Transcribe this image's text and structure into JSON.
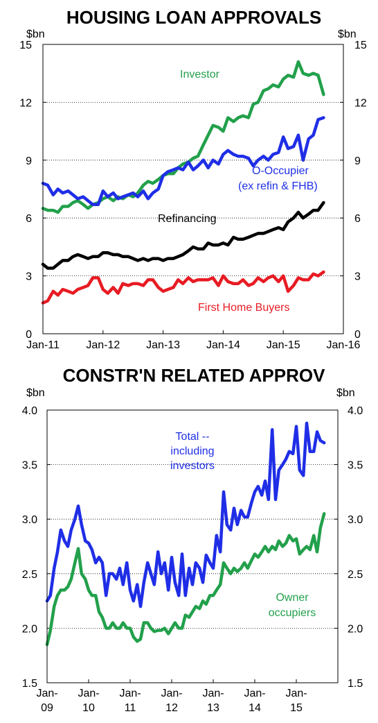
{
  "chart_data": [
    {
      "type": "line",
      "title": "HOUSING LOAN APPROVALS",
      "ylabel": "$bn",
      "ylim": [
        0,
        15
      ],
      "xlim": [
        2011.0,
        2016.0
      ],
      "yticks": [
        0,
        3,
        6,
        9,
        12,
        15
      ],
      "ytick_labels": [
        "0",
        "3",
        "6",
        "9",
        "12",
        "15"
      ],
      "xticks": [
        2011,
        2012,
        2013,
        2014,
        2015,
        2016
      ],
      "xtick_labels": [
        "Jan-11",
        "Jan-12",
        "Jan-13",
        "Jan-14",
        "Jan-15",
        "Jan-16"
      ],
      "grid": "horizontal dotted",
      "series": [
        {
          "name": "Investor",
          "color": "#22a04b",
          "x": [
            2011.0,
            2011.08,
            2011.17,
            2011.25,
            2011.33,
            2011.42,
            2011.5,
            2011.58,
            2011.67,
            2011.75,
            2011.83,
            2011.92,
            2012.0,
            2012.08,
            2012.17,
            2012.25,
            2012.33,
            2012.42,
            2012.5,
            2012.58,
            2012.67,
            2012.75,
            2012.83,
            2012.92,
            2013.0,
            2013.08,
            2013.17,
            2013.25,
            2013.33,
            2013.42,
            2013.5,
            2013.58,
            2013.67,
            2013.75,
            2013.83,
            2013.92,
            2014.0,
            2014.08,
            2014.17,
            2014.25,
            2014.33,
            2014.42,
            2014.5,
            2014.58,
            2014.67,
            2014.75,
            2014.83,
            2014.92,
            2015.0,
            2015.08,
            2015.17,
            2015.25,
            2015.33,
            2015.42,
            2015.5,
            2015.58,
            2015.67
          ],
          "values": [
            6.5,
            6.4,
            6.4,
            6.3,
            6.6,
            6.6,
            6.8,
            6.9,
            6.7,
            6.5,
            6.7,
            6.8,
            7.0,
            7.1,
            6.9,
            7.1,
            7.0,
            7.2,
            7.1,
            7.3,
            7.7,
            7.9,
            7.8,
            8.0,
            8.2,
            8.3,
            8.3,
            8.6,
            8.8,
            8.9,
            9.1,
            9.2,
            9.8,
            10.3,
            10.8,
            10.7,
            10.5,
            11.2,
            11.0,
            11.2,
            11.3,
            11.2,
            11.9,
            12.0,
            12.6,
            12.7,
            12.9,
            12.8,
            13.2,
            13.4,
            13.3,
            14.1,
            13.5,
            13.4,
            13.5,
            13.4,
            12.4
          ]
        },
        {
          "name": "O-Occupier (ex refin & FHB)",
          "color": "#1f2ee6",
          "x": [
            2011.0,
            2011.08,
            2011.17,
            2011.25,
            2011.33,
            2011.42,
            2011.5,
            2011.58,
            2011.67,
            2011.75,
            2011.83,
            2011.92,
            2012.0,
            2012.08,
            2012.17,
            2012.25,
            2012.33,
            2012.42,
            2012.5,
            2012.58,
            2012.67,
            2012.75,
            2012.83,
            2012.92,
            2013.0,
            2013.08,
            2013.17,
            2013.25,
            2013.33,
            2013.42,
            2013.5,
            2013.58,
            2013.67,
            2013.75,
            2013.83,
            2013.92,
            2014.0,
            2014.08,
            2014.17,
            2014.25,
            2014.33,
            2014.42,
            2014.5,
            2014.58,
            2014.67,
            2014.75,
            2014.83,
            2014.92,
            2015.0,
            2015.08,
            2015.17,
            2015.25,
            2015.33,
            2015.42,
            2015.5,
            2015.58,
            2015.67
          ],
          "values": [
            7.8,
            7.7,
            7.2,
            7.5,
            7.3,
            7.4,
            7.2,
            7.0,
            7.1,
            6.9,
            6.7,
            6.7,
            7.4,
            7.1,
            7.3,
            7.0,
            7.1,
            7.2,
            7.3,
            7.1,
            7.4,
            7.0,
            7.3,
            7.5,
            8.2,
            8.4,
            8.5,
            8.6,
            8.5,
            8.9,
            8.5,
            8.7,
            9.0,
            8.6,
            9.0,
            8.8,
            9.3,
            9.5,
            9.3,
            9.2,
            9.2,
            9.1,
            8.7,
            9.0,
            9.2,
            9.0,
            9.3,
            9.4,
            10.2,
            9.6,
            9.7,
            10.3,
            9.0,
            10.1,
            10.3,
            11.1,
            11.2
          ]
        },
        {
          "name": "Refinancing",
          "color": "#000000",
          "x": [
            2011.0,
            2011.08,
            2011.17,
            2011.25,
            2011.33,
            2011.42,
            2011.5,
            2011.58,
            2011.67,
            2011.75,
            2011.83,
            2011.92,
            2012.0,
            2012.08,
            2012.17,
            2012.25,
            2012.33,
            2012.42,
            2012.5,
            2012.58,
            2012.67,
            2012.75,
            2012.83,
            2012.92,
            2013.0,
            2013.08,
            2013.17,
            2013.25,
            2013.33,
            2013.42,
            2013.5,
            2013.58,
            2013.67,
            2013.75,
            2013.83,
            2013.92,
            2014.0,
            2014.08,
            2014.17,
            2014.25,
            2014.33,
            2014.42,
            2014.5,
            2014.58,
            2014.67,
            2014.75,
            2014.83,
            2014.92,
            2015.0,
            2015.08,
            2015.17,
            2015.25,
            2015.33,
            2015.42,
            2015.5,
            2015.58,
            2015.67
          ],
          "values": [
            3.6,
            3.4,
            3.4,
            3.6,
            3.8,
            3.8,
            4.0,
            4.1,
            4.0,
            3.9,
            4.0,
            4.0,
            4.2,
            4.2,
            4.1,
            4.1,
            4.0,
            4.0,
            3.9,
            3.8,
            3.9,
            3.8,
            3.9,
            3.9,
            3.8,
            3.9,
            3.9,
            4.0,
            4.1,
            4.3,
            4.5,
            4.4,
            4.4,
            4.7,
            4.6,
            4.6,
            4.7,
            4.6,
            5.0,
            4.9,
            4.9,
            5.0,
            5.1,
            5.2,
            5.2,
            5.3,
            5.4,
            5.5,
            5.4,
            5.8,
            6.0,
            6.3,
            6.0,
            6.2,
            6.4,
            6.4,
            6.8
          ]
        },
        {
          "name": "First Home Buyers",
          "color": "#e81b23",
          "x": [
            2011.0,
            2011.08,
            2011.17,
            2011.25,
            2011.33,
            2011.42,
            2011.5,
            2011.58,
            2011.67,
            2011.75,
            2011.83,
            2011.92,
            2012.0,
            2012.08,
            2012.17,
            2012.25,
            2012.33,
            2012.42,
            2012.5,
            2012.58,
            2012.67,
            2012.75,
            2012.83,
            2012.92,
            2013.0,
            2013.08,
            2013.17,
            2013.25,
            2013.33,
            2013.42,
            2013.5,
            2013.58,
            2013.67,
            2013.75,
            2013.83,
            2013.92,
            2014.0,
            2014.08,
            2014.17,
            2014.25,
            2014.33,
            2014.42,
            2014.5,
            2014.58,
            2014.67,
            2014.75,
            2014.83,
            2014.92,
            2015.0,
            2015.08,
            2015.17,
            2015.25,
            2015.33,
            2015.42,
            2015.5,
            2015.58,
            2015.67
          ],
          "values": [
            1.6,
            1.7,
            2.2,
            2.0,
            2.3,
            2.2,
            2.1,
            2.3,
            2.4,
            2.5,
            2.9,
            2.9,
            2.3,
            2.1,
            2.4,
            2.1,
            2.6,
            2.5,
            2.6,
            2.6,
            2.5,
            2.8,
            2.8,
            2.4,
            2.2,
            2.3,
            2.4,
            2.8,
            2.6,
            2.9,
            2.7,
            2.8,
            2.8,
            2.8,
            2.9,
            2.5,
            3.0,
            2.7,
            2.6,
            2.6,
            2.8,
            2.5,
            2.6,
            2.9,
            2.7,
            2.9,
            3.0,
            2.7,
            3.0,
            2.2,
            2.5,
            2.9,
            2.8,
            2.8,
            3.1,
            3.0,
            3.2
          ]
        }
      ]
    },
    {
      "type": "line",
      "title": "CONSTR'N RELATED APPROV",
      "ylabel": "$bn",
      "ylim": [
        1.5,
        4.0
      ],
      "xlim": [
        2009.0,
        2016.0
      ],
      "yticks": [
        1.5,
        2.0,
        2.5,
        3.0,
        3.5,
        4.0
      ],
      "ytick_labels": [
        "1.5",
        "2.0",
        "2.5",
        "3.0",
        "3.5",
        "4.0"
      ],
      "xticks": [
        2009,
        2010,
        2011,
        2012,
        2013,
        2014,
        2015
      ],
      "xtick_labels": [
        [
          "Jan-",
          "09"
        ],
        [
          "Jan-",
          "10"
        ],
        [
          "Jan-",
          "11"
        ],
        [
          "Jan-",
          "12"
        ],
        [
          "Jan-",
          "13"
        ],
        [
          "Jan-",
          "14"
        ],
        [
          "Jan-",
          "15"
        ]
      ],
      "grid": "horizontal dotted",
      "series": [
        {
          "name": "Total -- including investors",
          "color": "#1f2ee6",
          "x": [
            2009.0,
            2009.08,
            2009.17,
            2009.25,
            2009.33,
            2009.42,
            2009.5,
            2009.58,
            2009.67,
            2009.75,
            2009.83,
            2009.92,
            2010.0,
            2010.08,
            2010.17,
            2010.25,
            2010.33,
            2010.42,
            2010.5,
            2010.58,
            2010.67,
            2010.75,
            2010.83,
            2010.92,
            2011.0,
            2011.08,
            2011.17,
            2011.25,
            2011.33,
            2011.42,
            2011.5,
            2011.58,
            2011.67,
            2011.75,
            2011.83,
            2011.92,
            2012.0,
            2012.08,
            2012.17,
            2012.25,
            2012.33,
            2012.42,
            2012.5,
            2012.58,
            2012.67,
            2012.75,
            2012.83,
            2012.92,
            2013.0,
            2013.08,
            2013.17,
            2013.25,
            2013.33,
            2013.42,
            2013.5,
            2013.58,
            2013.67,
            2013.75,
            2013.83,
            2013.92,
            2014.0,
            2014.08,
            2014.17,
            2014.25,
            2014.33,
            2014.42,
            2014.5,
            2014.58,
            2014.67,
            2014.75,
            2014.83,
            2014.92,
            2015.0,
            2015.08,
            2015.17,
            2015.25,
            2015.33,
            2015.42,
            2015.5,
            2015.58,
            2015.67
          ],
          "values": [
            2.25,
            2.3,
            2.55,
            2.7,
            2.9,
            2.8,
            2.75,
            2.9,
            3.0,
            3.12,
            2.95,
            2.8,
            2.78,
            2.72,
            2.6,
            2.65,
            2.6,
            2.3,
            2.5,
            2.5,
            2.45,
            2.55,
            2.4,
            2.6,
            2.35,
            2.25,
            2.4,
            2.2,
            2.42,
            2.6,
            2.5,
            2.4,
            2.7,
            2.5,
            2.6,
            2.35,
            2.65,
            2.42,
            2.3,
            2.68,
            2.3,
            2.55,
            2.4,
            2.6,
            2.55,
            2.42,
            2.67,
            2.6,
            2.55,
            2.85,
            2.7,
            3.25,
            2.95,
            2.9,
            3.1,
            2.95,
            3.08,
            3.02,
            3.02,
            3.15,
            3.25,
            3.3,
            3.22,
            3.35,
            3.18,
            3.82,
            3.18,
            3.45,
            3.5,
            3.55,
            3.62,
            3.6,
            3.85,
            3.45,
            3.4,
            3.88,
            3.62,
            3.62,
            3.8,
            3.72,
            3.7
          ]
        },
        {
          "name": "Owner occupiers",
          "color": "#22a04b",
          "x": [
            2009.0,
            2009.08,
            2009.17,
            2009.25,
            2009.33,
            2009.42,
            2009.5,
            2009.58,
            2009.67,
            2009.75,
            2009.83,
            2009.92,
            2010.0,
            2010.08,
            2010.17,
            2010.25,
            2010.33,
            2010.42,
            2010.5,
            2010.58,
            2010.67,
            2010.75,
            2010.83,
            2010.92,
            2011.0,
            2011.08,
            2011.17,
            2011.25,
            2011.33,
            2011.42,
            2011.5,
            2011.58,
            2011.67,
            2011.75,
            2011.83,
            2011.92,
            2012.0,
            2012.08,
            2012.17,
            2012.25,
            2012.33,
            2012.42,
            2012.5,
            2012.58,
            2012.67,
            2012.75,
            2012.83,
            2012.92,
            2013.0,
            2013.08,
            2013.17,
            2013.25,
            2013.33,
            2013.42,
            2013.5,
            2013.58,
            2013.67,
            2013.75,
            2013.83,
            2013.92,
            2014.0,
            2014.08,
            2014.17,
            2014.25,
            2014.33,
            2014.42,
            2014.5,
            2014.58,
            2014.67,
            2014.75,
            2014.83,
            2014.92,
            2015.0,
            2015.08,
            2015.17,
            2015.25,
            2015.33,
            2015.42,
            2015.5,
            2015.58,
            2015.67
          ],
          "values": [
            1.85,
            1.98,
            2.2,
            2.3,
            2.35,
            2.35,
            2.38,
            2.45,
            2.6,
            2.73,
            2.5,
            2.45,
            2.35,
            2.3,
            2.3,
            2.15,
            2.1,
            2.0,
            2.0,
            2.05,
            2.0,
            2.0,
            2.05,
            2.0,
            2.0,
            1.92,
            1.88,
            1.9,
            2.05,
            2.05,
            2.0,
            1.97,
            1.98,
            1.98,
            2.0,
            1.95,
            2.0,
            2.05,
            2.0,
            2.0,
            2.12,
            2.1,
            2.15,
            2.2,
            2.18,
            2.25,
            2.22,
            2.3,
            2.3,
            2.35,
            2.4,
            2.6,
            2.55,
            2.5,
            2.55,
            2.52,
            2.55,
            2.6,
            2.55,
            2.62,
            2.68,
            2.65,
            2.7,
            2.75,
            2.7,
            2.75,
            2.72,
            2.8,
            2.75,
            2.78,
            2.85,
            2.8,
            2.82,
            2.68,
            2.72,
            2.75,
            2.72,
            2.85,
            2.7,
            2.92,
            3.05
          ]
        }
      ]
    }
  ],
  "top": {
    "title": "HOUSING LOAN APPROVALS",
    "unit_left": "$bn",
    "unit_right": "$bn",
    "ann_investor": "Investor",
    "ann_occupier_1": "O-Occupier",
    "ann_occupier_2": "(ex refin & FHB)",
    "ann_refin": "Refinancing",
    "ann_fhb": "First Home Buyers"
  },
  "bottom": {
    "title": "CONSTR'N RELATED APPROV",
    "unit_left": "$bn",
    "unit_right": "$bn",
    "ann_total_1": "Total --",
    "ann_total_2": "including",
    "ann_total_3": "investors",
    "ann_owner_1": "Owner",
    "ann_owner_2": "occupiers"
  },
  "colors": {
    "green": "#22a04b",
    "blue": "#1f2ee6",
    "black": "#000000",
    "red": "#e81b23"
  }
}
